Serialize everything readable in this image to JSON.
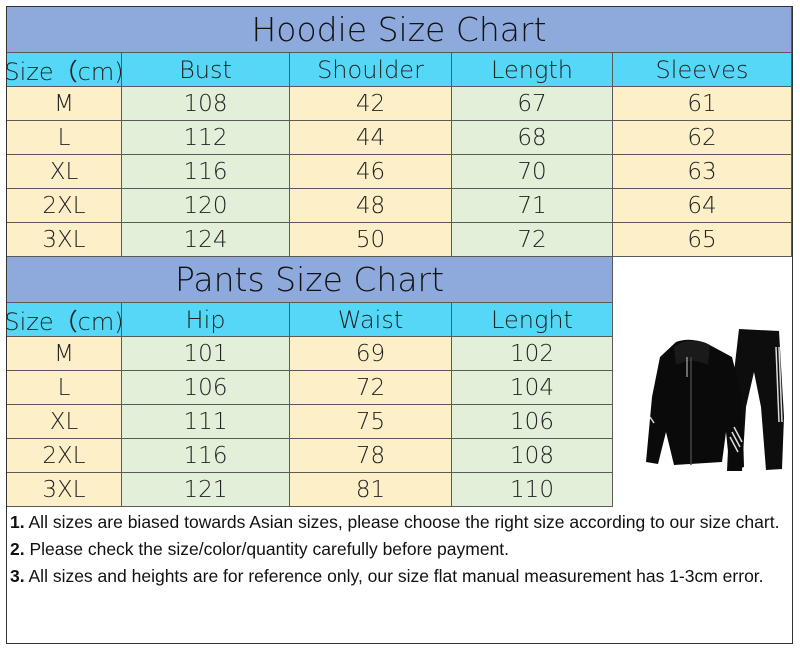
{
  "colors": {
    "title_bg": "#8eaadc",
    "header_bg": "#55d8f8",
    "yellow": "#fdf0c9",
    "green": "#e2efd9",
    "border": "#5a5a5a"
  },
  "hoodie": {
    "title": "Hoodie Size Chart",
    "headers": [
      "Size（cm)",
      "Bust",
      "Shoulder",
      "Length",
      "Sleeves"
    ],
    "rows": [
      [
        "M",
        "108",
        "42",
        "67",
        "61"
      ],
      [
        "L",
        "112",
        "44",
        "68",
        "62"
      ],
      [
        "XL",
        "116",
        "46",
        "70",
        "63"
      ],
      [
        "2XL",
        "120",
        "48",
        "71",
        "64"
      ],
      [
        "3XL",
        "124",
        "50",
        "72",
        "65"
      ]
    ]
  },
  "pants": {
    "title": "Pants Size Chart",
    "headers": [
      "Size（cm)",
      "Hip",
      "Waist",
      "Lenght"
    ],
    "rows": [
      [
        "M",
        "101",
        "69",
        "102"
      ],
      [
        "L",
        "106",
        "72",
        "104"
      ],
      [
        "XL",
        "111",
        "75",
        "106"
      ],
      [
        "2XL",
        "116",
        "78",
        "108"
      ],
      [
        "3XL",
        "121",
        "81",
        "110"
      ]
    ]
  },
  "product_image": "black-tracksuit-hoodie-and-pants",
  "notes": [
    {
      "num": "1.",
      "text": " All sizes are biased towards Asian sizes, please choose the right size according to our size chart."
    },
    {
      "num": "2.",
      "text": " Please check the size/color/quantity carefully before payment."
    },
    {
      "num": "3.",
      "text": " All sizes and heights are for reference only, our size flat manual measurement has 1-3cm error."
    }
  ]
}
